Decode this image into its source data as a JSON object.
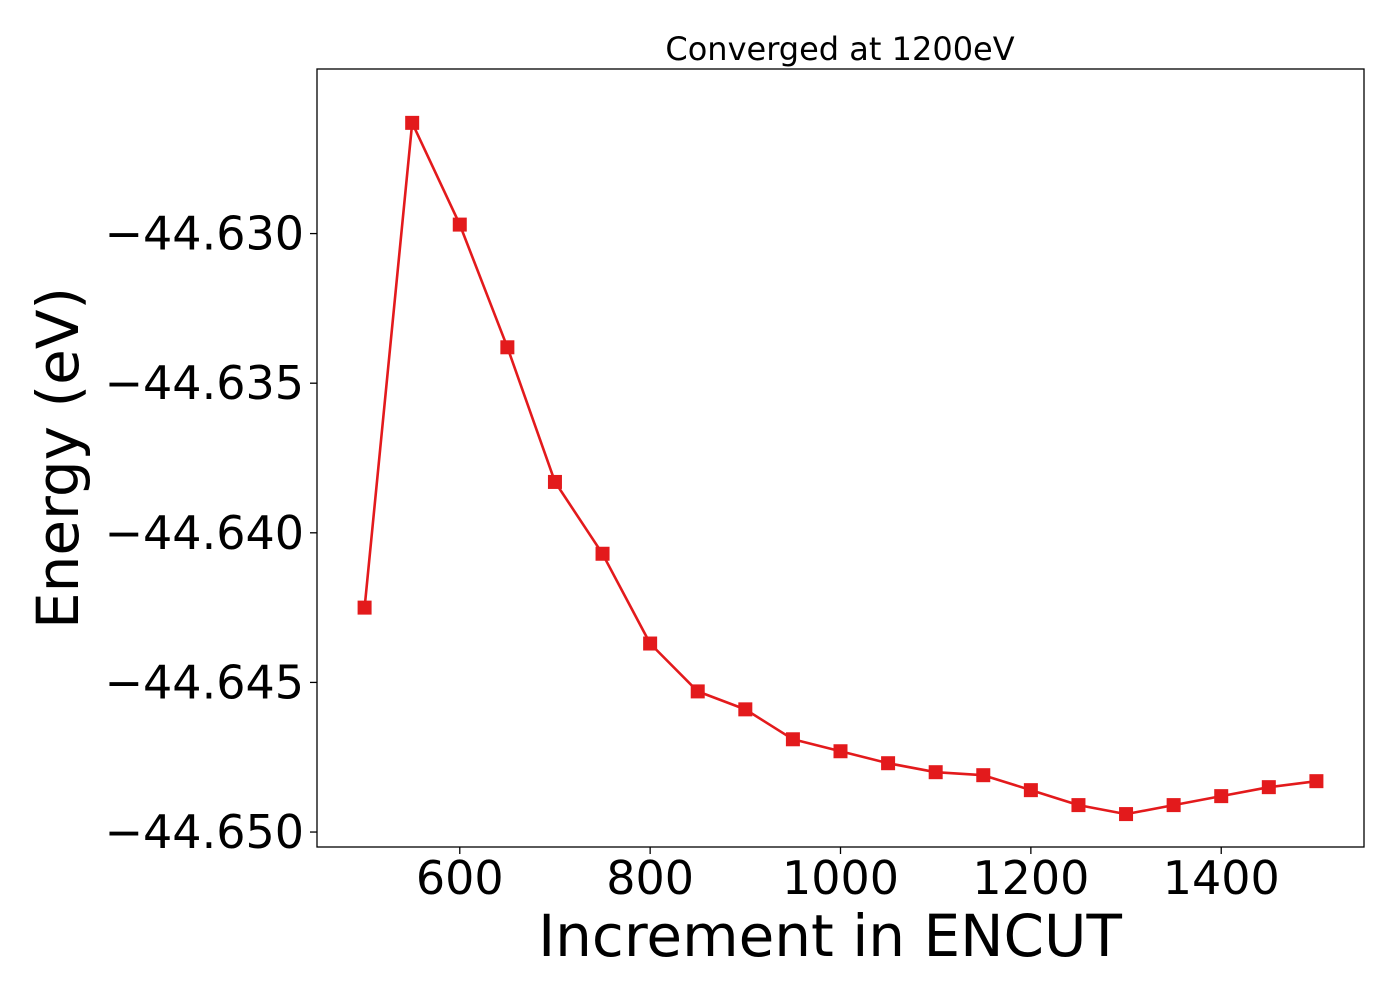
{
  "chart_data": {
    "type": "line",
    "title": "Converged at 1200eV",
    "xlabel": "Increment in ENCUT",
    "ylabel": "Energy (eV)",
    "xlim": [
      450,
      1550
    ],
    "ylim": [
      -44.6505,
      -44.6245
    ],
    "x_ticks": [
      600,
      800,
      1000,
      1200,
      1400
    ],
    "x_tick_labels": [
      "600",
      "800",
      "1000",
      "1200",
      "1400"
    ],
    "y_ticks": [
      -44.65,
      -44.645,
      -44.64,
      -44.635,
      -44.63
    ],
    "y_tick_labels": [
      "−44.650",
      "−44.645",
      "−44.640",
      "−44.635",
      "−44.630"
    ],
    "grid": false,
    "series": [
      {
        "color": "#e31a1c",
        "marker": "square",
        "x": [
          500,
          550,
          600,
          650,
          700,
          750,
          800,
          850,
          900,
          950,
          1000,
          1050,
          1100,
          1150,
          1200,
          1250,
          1300,
          1350,
          1400,
          1450,
          1500
        ],
        "y": [
          -44.6425,
          -44.6263,
          -44.6297,
          -44.6338,
          -44.6383,
          -44.6407,
          -44.6437,
          -44.6453,
          -44.6459,
          -44.6469,
          -44.6473,
          -44.6477,
          -44.648,
          -44.6481,
          -44.6486,
          -44.6491,
          -44.6494,
          -44.6491,
          -44.6488,
          -44.6485,
          -44.6483
        ]
      }
    ]
  }
}
